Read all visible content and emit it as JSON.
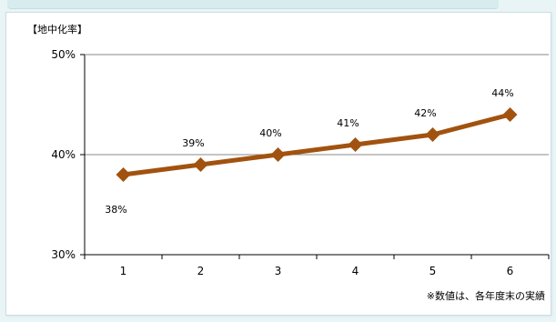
{
  "unit_label": "【地中化率】",
  "footnote": "※数値は、各年度末の実績",
  "chart_data": {
    "type": "line",
    "title": "",
    "xlabel": "",
    "ylabel": "",
    "x": [
      1,
      2,
      3,
      4,
      5,
      6
    ],
    "series": [
      {
        "values": [
          38,
          39,
          40,
          41,
          42,
          44
        ]
      }
    ],
    "data_labels": [
      "38%",
      "39%",
      "40%",
      "41%",
      "42%",
      "44%"
    ],
    "ylim": [
      30,
      50
    ],
    "yticks": [
      30,
      40,
      50
    ],
    "ytick_labels": [
      "30%",
      "40%",
      "50%"
    ],
    "grid": "horizontal at 40%",
    "legend": "none",
    "line_color": "#a2520f",
    "marker": "diamond"
  }
}
